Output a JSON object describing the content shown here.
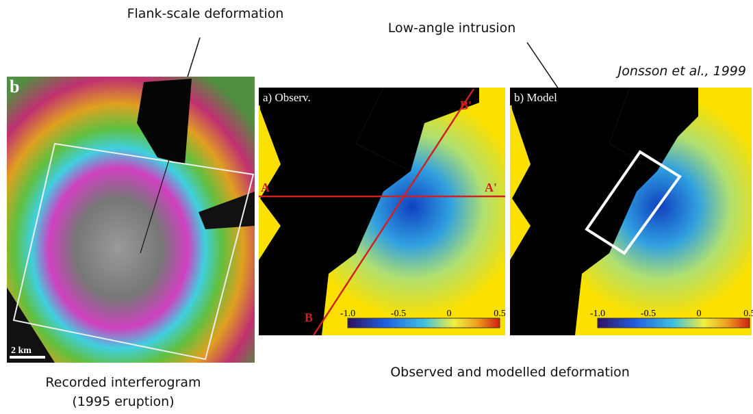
{
  "annotations": {
    "flank": "Flank-scale deformation",
    "intrusion": "Low-angle intrusion",
    "citation": "Jonsson et al., 1999"
  },
  "left_panel": {
    "label": "b",
    "scale": "2 km",
    "caption": [
      "Recorded interferogram",
      "(1995 eruption)"
    ]
  },
  "right_panels": {
    "caption": "Observed and modelled deformation",
    "panels": [
      {
        "label": "a) Observ.",
        "colorbar": [
          "-1.0",
          "-0.5",
          "0",
          "0.5"
        ],
        "profile_labels": [
          "A",
          "A'",
          "B",
          "B'"
        ]
      },
      {
        "label": "b) Model",
        "colorbar": [
          "-1.0",
          "-0.5",
          "0",
          "0.5"
        ]
      }
    ]
  }
}
